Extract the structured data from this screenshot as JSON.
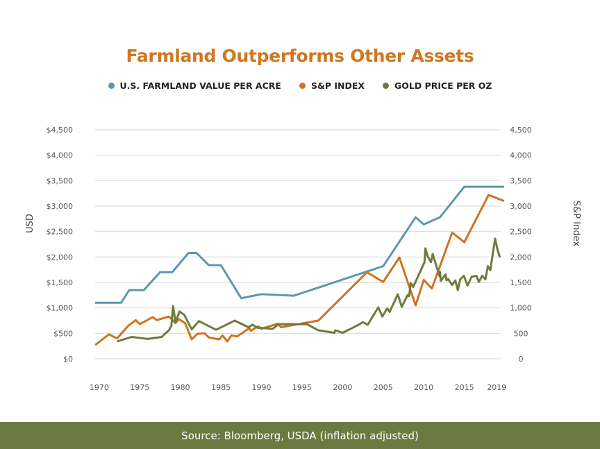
{
  "chart_data": {
    "type": "line",
    "title": "Farmland Outperforms Other Assets",
    "ylabel": "USD",
    "y2label": "S&P Index",
    "xlim": [
      1969.5,
      2020
    ],
    "ylim": [
      0,
      4500
    ],
    "y2lim": [
      0,
      4500
    ],
    "x_ticks": [
      "1970",
      "1975",
      "1980",
      "1985",
      "1990",
      "1995",
      "2000",
      "2005",
      "2010",
      "2015",
      "2019"
    ],
    "x_tick_values": [
      1970,
      1975,
      1980,
      1985,
      1990,
      1995,
      2000,
      2005,
      2010,
      2015,
      2019
    ],
    "y_ticks": [
      "$0",
      "$500",
      "$1,000",
      "$1,500",
      "$2,000",
      "$2,500",
      "$3,000",
      "$3,500",
      "$4,000",
      "$4,500"
    ],
    "y2_ticks": [
      "0",
      "500",
      "1,000",
      "1,500",
      "2,000",
      "2,500",
      "3,000",
      "3,500",
      "4,000",
      "4,500"
    ],
    "y_tick_values": [
      0,
      500,
      1000,
      1500,
      2000,
      2500,
      3000,
      3500,
      4000,
      4500
    ],
    "grid": true,
    "legend_placement": "top",
    "series": [
      {
        "name": "U.S. FARMLAND VALUE PER ACRE",
        "color": "#5b97b1",
        "axis": "left",
        "x": [
          1969.5,
          1972.7,
          1973.7,
          1975.5,
          1977.5,
          1979,
          1981,
          1982,
          1983.5,
          1985,
          1987.5,
          1990,
          1994,
          2005,
          2009,
          2010,
          2012,
          2015,
          2019.9
        ],
        "y": [
          1100,
          1100,
          1350,
          1350,
          1700,
          1700,
          2080,
          2080,
          1840,
          1840,
          1190,
          1270,
          1240,
          1820,
          2780,
          2640,
          2780,
          3380,
          3380
        ]
      },
      {
        "name": "S&P INDEX",
        "color": "#d0731f",
        "axis": "right",
        "x": [
          1969.5,
          1971.2,
          1972.2,
          1973.6,
          1974.5,
          1975,
          1976.6,
          1977.1,
          1978.6,
          1979.4,
          1979.8,
          1980.6,
          1981.4,
          1982.1,
          1983,
          1983.5,
          1984.8,
          1985.2,
          1985.8,
          1986.3,
          1987,
          1988.5,
          1988.7,
          1989.6,
          1990,
          1992,
          1992.4,
          1997,
          2003,
          2005,
          2007,
          2009,
          2010,
          2011,
          2013.5,
          2015,
          2018,
          2019.9
        ],
        "y": [
          270,
          480,
          400,
          650,
          760,
          680,
          820,
          760,
          830,
          700,
          780,
          700,
          380,
          490,
          500,
          420,
          380,
          460,
          340,
          460,
          440,
          600,
          550,
          640,
          590,
          690,
          620,
          750,
          1700,
          1510,
          1990,
          1050,
          1550,
          1380,
          2480,
          2290,
          3220,
          3100
        ]
      },
      {
        "name": "GOLD PRICE PER OZ",
        "color": "#6c7c3d",
        "axis": "right",
        "x": [
          1972.2,
          1974,
          1976,
          1977.7,
          1978.6,
          1978.9,
          1979.1,
          1979.4,
          1979.9,
          1980.5,
          1981.4,
          1982.3,
          1984.4,
          1986.7,
          1988.4,
          1988.9,
          1989.5,
          1991.4,
          1992.1,
          1995.6,
          1997,
          1999,
          1999.1,
          2000,
          2002,
          2002.5,
          2003.1,
          2004.4,
          2004.9,
          2005.5,
          2005.8,
          2006.8,
          2007.3,
          2008,
          2008.2,
          2008.4,
          2008.7,
          2009.5,
          2010.1,
          2010.2,
          2010.5,
          2010.9,
          2011.1,
          2011.95,
          2012,
          2012.1,
          2012.7,
          2012.8,
          2013,
          2013.5,
          2013.9,
          2014.2,
          2014.5,
          2014.95,
          2015.4,
          2015.9,
          2016.5,
          2016.8,
          2017.2,
          2017.6,
          2017.9,
          2018.2,
          2018.8,
          2019.1,
          2019.4
        ],
        "y": [
          340,
          430,
          390,
          430,
          560,
          650,
          1040,
          720,
          930,
          860,
          580,
          740,
          570,
          750,
          620,
          670,
          610,
          590,
          680,
          680,
          560,
          510,
          560,
          510,
          670,
          720,
          670,
          1010,
          830,
          990,
          920,
          1270,
          1020,
          1250,
          1230,
          1490,
          1410,
          1690,
          1900,
          2170,
          2010,
          1900,
          2060,
          1620,
          1710,
          1530,
          1660,
          1540,
          1570,
          1450,
          1540,
          1350,
          1560,
          1630,
          1440,
          1610,
          1630,
          1510,
          1630,
          1560,
          1820,
          1740,
          2360,
          2140,
          1990
        ]
      }
    ]
  },
  "footer": {
    "source": "Source: Bloomberg, USDA (inflation adjusted)"
  }
}
